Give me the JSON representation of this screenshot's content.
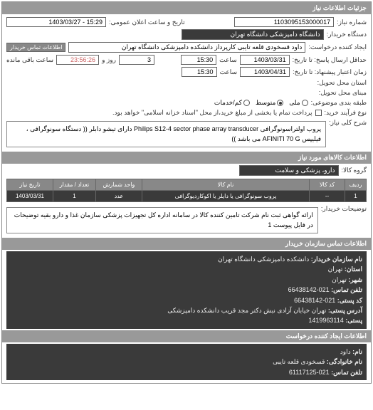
{
  "panel": {
    "title": "جزئیات اطلاعات نیاز"
  },
  "needNumber": {
    "label": "شماره نیاز:",
    "value": "1103095153000017"
  },
  "announceDate": {
    "label": "تاریخ و ساعت اعلان عمومی:",
    "value": "15:29 - 1403/03/27"
  },
  "buyerOrg": {
    "label": "دستگاه خریدار:",
    "value": "دانشگاه دامپزشکی دانشگاه تهران"
  },
  "requester": {
    "label": "ایجاد کننده درخواست:",
    "value": "داود قسخودی قلعه تایبی کارپرداز دانشکده دامپزشکی دانشگاه تهران"
  },
  "buyerContactBtn": "اطلاعات تماس خریدار",
  "deadlineStart": {
    "label": "حداقل ارسال پاسخ: تا تاریخ:",
    "date": "1403/03/31",
    "timeLabel": "ساعت",
    "time": "15:30"
  },
  "remaining": {
    "days": "3",
    "daysLabel": "روز و",
    "time": "23:56:26",
    "suffix": "ساعت باقی مانده"
  },
  "validity": {
    "label": "زمان اعتبار پیشنهاد: تا تاریخ:",
    "date": "1403/04/31",
    "timeLabel": "ساعت",
    "time": "15:30"
  },
  "deliveryPlace": {
    "label": "استان محل تحویل:"
  },
  "transferPlace": {
    "label": "مبنای محل تحویل:"
  },
  "budget": {
    "label": "طبقه بندی موضوعی:",
    "opt1": "ملی",
    "opt2": "متوسط",
    "opt3": "کم/خدمات"
  },
  "payment": {
    "label": "نوع فرآیند خرید:",
    "chkLabel": "پرداخت تمام یا بخشی از مبلغ خرید،از محل \"اسناد خزانه اسلامی\" خواهد بود."
  },
  "generalDesc": {
    "label": "شرح کلی نیاز:",
    "text": "پروب اولتراسونوگرافی Philips S12-4 sector phase array transducer دارای تیشو دابلر (( دستگاه سونوگرافی ، فیلیپس AFINITI 70 G می باشد ))"
  },
  "goodsHeader": "اطلاعات کالاهای مورد نیاز",
  "goodsGroup": {
    "label": "گروه کالا:",
    "value": "دارو، پزشکی و سلامت"
  },
  "table": {
    "headers": [
      "ردیف",
      "کد کالا",
      "نام کالا",
      "واحد شمارش",
      "تعداد / مقدار",
      "تاریخ نیاز"
    ],
    "row": [
      "1",
      "--",
      "پروب سونوگرافی یا دایلر یا اکوکاردیوگرافی",
      "عدد",
      "1",
      "1403/03/31"
    ]
  },
  "buyerNotes": {
    "label": "توضیحات خریدار:",
    "text": "ارائه گواهی ثبت نام شرکت تامین کننده کالا در سامانه اداره کل تجهیزات پزشکی سازمان غذا و دارو بقیه توضیحات در فایل پیوست 1"
  },
  "contactHeader": "اطلاعات تماس سازمان خریدار",
  "contact": {
    "orgLabel": "نام سازمان خریدار:",
    "org": "دانشکده دامپزشکی دانشگاه تهران",
    "provinceLabel": "استان:",
    "province": "تهران",
    "cityLabel": "شهر:",
    "city": "تهران",
    "phoneLabel": "تلفن تماس:",
    "phone": "021-66438142",
    "postcodeLabel": "کد پستی:",
    "postcode": "021-66438142",
    "addrLabel": "آدرس پستی:",
    "addr": "تهران خیابان آزادی نبش دکتر مجد قریب دانشکده دامپزشکی",
    "natLabel": "پستی:",
    "nat": "1419963114"
  },
  "creatorHeader": "اطلاعات ایجاد کننده درخواست",
  "creator": {
    "nameLabel": "نام:",
    "name": "داود",
    "familyLabel": "نام خانوادگی:",
    "family": "قسخودی قلعه تایبی",
    "phoneLabel": "تلفن تماس:",
    "phone": "021-61117125"
  },
  "colors": {
    "headerBg": "#999999",
    "darkBg": "#3a3a3a",
    "borderColor": "#888888"
  }
}
